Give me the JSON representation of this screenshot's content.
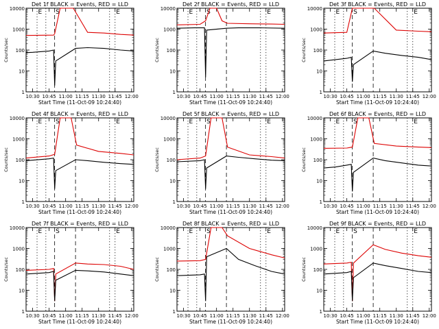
{
  "chart_data": {
    "type": "line",
    "xlabel": "Start Time (11-Oct-09 10:24:40)",
    "ylabel": "Counts/sec",
    "x_ticks": [
      "10:30",
      "10:45",
      "11:00",
      "11:15",
      "11:30",
      "11:45",
      "12:00"
    ],
    "y_ticks": [
      "1",
      "10",
      "100",
      "1000",
      "10000"
    ],
    "xlim": [
      "10:24",
      "12:02"
    ],
    "ylim": [
      1,
      10000
    ],
    "yscale": "log",
    "marker_lines": [
      {
        "label": "E",
        "time": "10:34",
        "style": "dotted"
      },
      {
        "label": "",
        "time": "10:42",
        "style": "dotted"
      },
      {
        "label": "S",
        "time": "10:50",
        "style": "dashed"
      },
      {
        "label": "",
        "time": "11:09",
        "style": "dashed"
      },
      {
        "label": "",
        "time": "11:40",
        "style": "dotted"
      },
      {
        "label": "E",
        "time": "11:45",
        "style": "dotted"
      }
    ],
    "series_colors": {
      "events": "#000000",
      "lld": "#dd0000"
    },
    "panels": [
      {
        "title": "Det 1f BLACK = Events, RED = LLD",
        "series": [
          {
            "color": "red",
            "x": [
              "10:24",
              "10:49",
              "10:50",
              "10:55",
              "11:07",
              "11:20",
              "11:35",
              "11:50",
              "12:02"
            ],
            "y": [
              500,
              520,
              600,
              10000,
              10000,
              700,
              650,
              560,
              520
            ]
          },
          {
            "color": "black",
            "x": [
              "10:24",
              "10:30",
              "10:45",
              "10:49",
              "10:50",
              "10:51",
              "11:09",
              "11:20",
              "11:35",
              "11:50",
              "12:02"
            ],
            "y": [
              75,
              78,
              90,
              100,
              2,
              30,
              120,
              130,
              120,
              100,
              90
            ]
          }
        ]
      },
      {
        "title": "Det 2f BLACK = Events, RED = LLD",
        "series": [
          {
            "color": "red",
            "x": [
              "10:24",
              "10:45",
              "10:50",
              "10:54",
              "11:00",
              "11:05",
              "11:10",
              "11:30",
              "11:50",
              "12:02"
            ],
            "y": [
              1600,
              1700,
              2500,
              10000,
              10000,
              2500,
              1900,
              1800,
              1750,
              1700
            ]
          },
          {
            "color": "black",
            "x": [
              "10:24",
              "10:40",
              "10:49",
              "10:50",
              "10:51",
              "11:09",
              "11:20",
              "11:40",
              "12:02"
            ],
            "y": [
              1100,
              1150,
              1150,
              5,
              900,
              1100,
              1150,
              1150,
              1100
            ]
          }
        ]
      },
      {
        "title": "Det 3f BLACK = Events, RED = LLD",
        "series": [
          {
            "color": "red",
            "x": [
              "10:24",
              "10:45",
              "10:50",
              "11:10",
              "11:30",
              "11:50",
              "12:02"
            ],
            "y": [
              650,
              700,
              10000,
              10000,
              900,
              800,
              750
            ]
          },
          {
            "color": "black",
            "x": [
              "10:24",
              "10:35",
              "10:45",
              "10:49",
              "10:50",
              "10:51",
              "11:09",
              "11:20",
              "11:35",
              "11:50",
              "12:02"
            ],
            "y": [
              30,
              35,
              40,
              45,
              3,
              20,
              90,
              70,
              55,
              45,
              35
            ]
          }
        ]
      },
      {
        "title": "Det 4f BLACK = Events, RED = LLD",
        "series": [
          {
            "color": "red",
            "x": [
              "10:24",
              "10:45",
              "10:50",
              "10:55",
              "11:05",
              "11:10",
              "11:30",
              "11:50",
              "12:02"
            ],
            "y": [
              120,
              150,
              180,
              10000,
              10000,
              500,
              250,
              200,
              170
            ]
          },
          {
            "color": "black",
            "x": [
              "10:24",
              "10:45",
              "10:49",
              "10:50",
              "10:51",
              "11:09",
              "11:20",
              "11:35",
              "11:50",
              "12:02"
            ],
            "y": [
              90,
              110,
              120,
              4,
              30,
              100,
              90,
              75,
              65,
              60
            ]
          }
        ]
      },
      {
        "title": "Det 5f BLACK = Events, RED = LLD",
        "series": [
          {
            "color": "red",
            "x": [
              "10:24",
              "10:45",
              "10:50",
              "10:55",
              "11:05",
              "11:10",
              "11:30",
              "11:50",
              "12:02"
            ],
            "y": [
              100,
              120,
              150,
              10000,
              10000,
              400,
              170,
              140,
              120
            ]
          },
          {
            "color": "black",
            "x": [
              "10:24",
              "10:45",
              "10:49",
              "10:50",
              "10:51",
              "11:09",
              "11:20",
              "11:35",
              "11:50",
              "12:02"
            ],
            "y": [
              80,
              90,
              100,
              4,
              40,
              150,
              130,
              110,
              95,
              90
            ]
          }
        ]
      },
      {
        "title": "Det 6f BLACK = Events, RED = LLD",
        "series": [
          {
            "color": "red",
            "x": [
              "10:24",
              "10:45",
              "10:50",
              "10:55",
              "11:05",
              "11:10",
              "11:30",
              "11:50",
              "12:02"
            ],
            "y": [
              350,
              360,
              400,
              10000,
              10000,
              600,
              450,
              400,
              380
            ]
          },
          {
            "color": "black",
            "x": [
              "10:24",
              "10:35",
              "10:45",
              "10:49",
              "10:50",
              "10:51",
              "11:09",
              "11:20",
              "11:35",
              "11:50",
              "12:02"
            ],
            "y": [
              40,
              45,
              55,
              60,
              3,
              25,
              120,
              90,
              70,
              55,
              50
            ]
          }
        ]
      },
      {
        "title": "Det 7f BLACK = Events, RED = LLD",
        "series": [
          {
            "color": "red",
            "x": [
              "10:24",
              "10:45",
              "10:49",
              "10:50",
              "10:51",
              "11:09",
              "11:20",
              "11:35",
              "11:50",
              "12:02"
            ],
            "y": [
              90,
              100,
              110,
              3,
              60,
              200,
              180,
              170,
              140,
              100
            ]
          },
          {
            "color": "black",
            "x": [
              "10:24",
              "10:45",
              "10:49",
              "10:50",
              "10:51",
              "11:09",
              "11:20",
              "11:35",
              "11:50",
              "12:02"
            ],
            "y": [
              60,
              70,
              80,
              3,
              30,
              90,
              85,
              75,
              60,
              50
            ]
          }
        ]
      },
      {
        "title": "Det 8f BLACK = Events, RED = LLD",
        "series": [
          {
            "color": "red",
            "x": [
              "10:24",
              "10:45",
              "10:50",
              "10:55",
              "11:05",
              "11:10",
              "11:30",
              "11:50",
              "12:02"
            ],
            "y": [
              250,
              260,
              300,
              10000,
              10000,
              4000,
              1000,
              500,
              350
            ]
          },
          {
            "color": "black",
            "x": [
              "10:24",
              "10:45",
              "10:49",
              "10:50",
              "10:51",
              "11:09",
              "11:20",
              "11:35",
              "11:50",
              "12:02"
            ],
            "y": [
              50,
              55,
              60,
              3,
              400,
              1000,
              300,
              150,
              80,
              60
            ]
          }
        ]
      },
      {
        "title": "Det 9f BLACK = Events, RED = LLD",
        "series": [
          {
            "color": "red",
            "x": [
              "10:24",
              "10:45",
              "10:49",
              "10:50",
              "10:51",
              "11:09",
              "11:20",
              "11:35",
              "11:50",
              "12:02"
            ],
            "y": [
              180,
              200,
              220,
              3,
              200,
              1500,
              900,
              600,
              450,
              380
            ]
          },
          {
            "color": "black",
            "x": [
              "10:24",
              "10:45",
              "10:49",
              "10:50",
              "10:51",
              "11:09",
              "11:20",
              "11:35",
              "11:50",
              "12:02"
            ],
            "y": [
              60,
              70,
              80,
              3,
              40,
              200,
              150,
              110,
              80,
              70
            ]
          }
        ]
      }
    ]
  }
}
